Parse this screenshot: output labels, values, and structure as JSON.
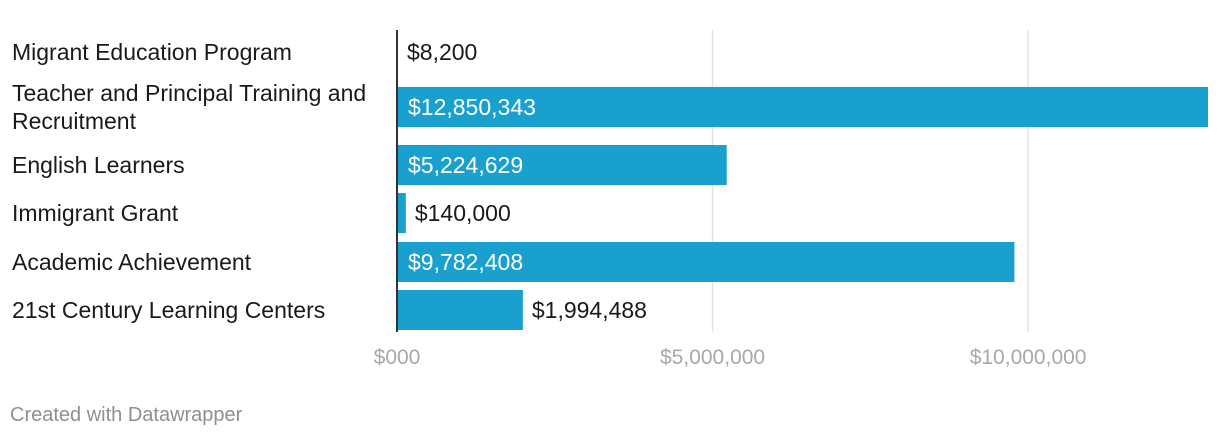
{
  "chart_data": {
    "type": "bar",
    "orientation": "horizontal",
    "categories": [
      "Migrant Education Program",
      "Teacher and Principal Training and Recruitment",
      "English Learners",
      "Immigrant Grant",
      "Academic Achievement",
      "21st Century Learning Centers"
    ],
    "category_lines": [
      [
        "Migrant Education Program"
      ],
      [
        "Teacher and Principal Training and",
        "Recruitment"
      ],
      [
        "English Learners"
      ],
      [
        "Immigrant Grant"
      ],
      [
        "Academic Achievement"
      ],
      [
        "21st Century Learning Centers"
      ]
    ],
    "values": [
      8200,
      12850343,
      5224629,
      140000,
      9782408,
      1994488
    ],
    "value_labels": [
      "$8,200",
      "$12,850,343",
      "$5,224,629",
      "$140,000",
      "$9,782,408",
      "$1,994,488"
    ],
    "xlim": [
      0,
      12850343
    ],
    "x_ticks": [
      0,
      5000000,
      10000000
    ],
    "x_tick_labels": [
      "$000",
      "$5,000,000",
      "$10,000,000"
    ],
    "bar_color": "#1aa0ce",
    "title": "",
    "xlabel": "",
    "ylabel": "",
    "grid": true
  },
  "footer": {
    "credit": "Created with Datawrapper"
  }
}
